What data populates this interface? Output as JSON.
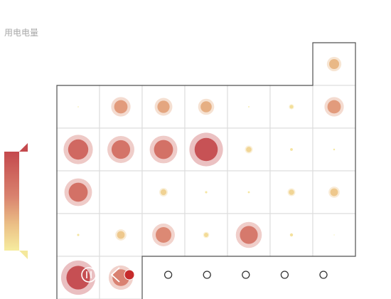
{
  "chart_data": {
    "type": "scatter",
    "title": "用电电量",
    "visual_map": {
      "type": "continuous",
      "colors": [
        "#c4494d",
        "#d9826e",
        "#ecc287",
        "#f6ec9f"
      ],
      "handles": true
    },
    "grid_shape": "calendar-like grid, 7 columns; one extra cell above the last column, bottom row has only 2 cells",
    "points": [
      {
        "col": 6,
        "row": 0,
        "value": 40
      },
      {
        "col": 0,
        "row": 1,
        "value": 1
      },
      {
        "col": 1,
        "row": 1,
        "value": 55
      },
      {
        "col": 2,
        "row": 1,
        "value": 50
      },
      {
        "col": 3,
        "row": 1,
        "value": 45
      },
      {
        "col": 4,
        "row": 1,
        "value": 2
      },
      {
        "col": 5,
        "row": 1,
        "value": 12
      },
      {
        "col": 6,
        "row": 1,
        "value": 55
      },
      {
        "col": 0,
        "row": 2,
        "value": 85
      },
      {
        "col": 1,
        "row": 2,
        "value": 78
      },
      {
        "col": 2,
        "row": 2,
        "value": 80
      },
      {
        "col": 3,
        "row": 2,
        "value": 98
      },
      {
        "col": 4,
        "row": 2,
        "value": 20
      },
      {
        "col": 5,
        "row": 2,
        "value": 8
      },
      {
        "col": 6,
        "row": 2,
        "value": 4
      },
      {
        "col": 0,
        "row": 3,
        "value": 80
      },
      {
        "col": 2,
        "row": 3,
        "value": 22
      },
      {
        "col": 3,
        "row": 3,
        "value": 6
      },
      {
        "col": 4,
        "row": 3,
        "value": 5
      },
      {
        "col": 5,
        "row": 3,
        "value": 20
      },
      {
        "col": 6,
        "row": 3,
        "value": 30
      },
      {
        "col": 0,
        "row": 4,
        "value": 6
      },
      {
        "col": 1,
        "row": 4,
        "value": 30
      },
      {
        "col": 2,
        "row": 4,
        "value": 65
      },
      {
        "col": 3,
        "row": 4,
        "value": 15
      },
      {
        "col": 4,
        "row": 4,
        "value": 75
      },
      {
        "col": 5,
        "row": 4,
        "value": 10
      },
      {
        "col": 6,
        "row": 4,
        "value": 0
      },
      {
        "col": 0,
        "row": 5,
        "value": 100
      },
      {
        "col": 1,
        "row": 5,
        "value": 70
      }
    ],
    "timeline": {
      "controls": [
        "play",
        "prev"
      ],
      "current_index": 0,
      "stops": 6
    }
  },
  "icons": {
    "play": "pause-icon",
    "prev": "chevron-left-icon"
  }
}
